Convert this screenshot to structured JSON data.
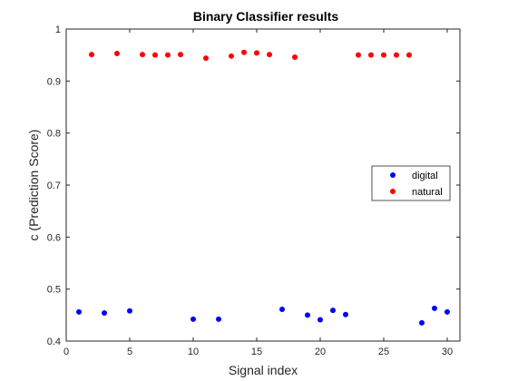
{
  "chart_data": {
    "type": "scatter",
    "title": "Binary Classifier results",
    "xlabel": "Signal index",
    "ylabel": "c (Prediction Score)",
    "xlim": [
      0,
      31
    ],
    "ylim": [
      0.4,
      1.0
    ],
    "xticks": [
      "0",
      "5",
      "10",
      "15",
      "20",
      "25",
      "30"
    ],
    "yticks": [
      "0.4",
      "0.5",
      "0.6",
      "0.7",
      "0.8",
      "0.9",
      "1"
    ],
    "grid": false,
    "legend_position": "right",
    "series": [
      {
        "name": "digital",
        "color": "#0000ff",
        "x": [
          1,
          3,
          5,
          10,
          12,
          17,
          19,
          20,
          21,
          22,
          28,
          29,
          30
        ],
        "y": [
          0.456,
          0.454,
          0.458,
          0.442,
          0.442,
          0.461,
          0.45,
          0.441,
          0.459,
          0.451,
          0.435,
          0.463,
          0.456
        ]
      },
      {
        "name": "natural",
        "color": "#ff0000",
        "x": [
          2,
          4,
          6,
          7,
          8,
          9,
          11,
          13,
          14,
          15,
          16,
          18,
          23,
          24,
          25,
          26,
          27
        ],
        "y": [
          0.951,
          0.953,
          0.951,
          0.95,
          0.95,
          0.951,
          0.944,
          0.948,
          0.955,
          0.954,
          0.951,
          0.946,
          0.95,
          0.95,
          0.95,
          0.95,
          0.95
        ]
      }
    ]
  }
}
